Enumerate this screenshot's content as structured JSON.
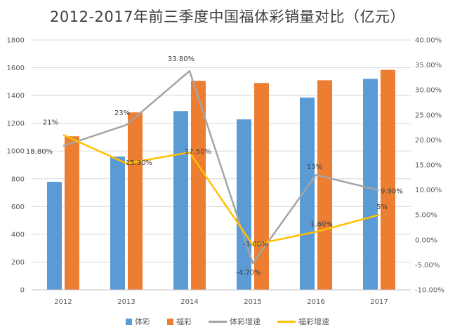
{
  "colors": {
    "tc": "#5B9BD5",
    "fc": "#ED7D31",
    "tc_growth": "#A5A5A5",
    "fc_growth": "#FFC000",
    "grid": "#D9D9D9"
  },
  "chart_data": {
    "type": "bar",
    "title": "2012-2017年前三季度中国福体彩销量对比（亿元）",
    "categories": [
      "2012",
      "2013",
      "2014",
      "2015",
      "2016",
      "2017"
    ],
    "y_left": {
      "min": 0,
      "max": 1800,
      "step": 200,
      "ticks": [
        "0",
        "200",
        "400",
        "600",
        "800",
        "1000",
        "1200",
        "1400",
        "1600",
        "1800"
      ]
    },
    "y_right": {
      "min": -10,
      "max": 40,
      "step": 5,
      "ticks": [
        "-10.00%",
        "-5.00%",
        "0.00%",
        "5.00%",
        "10.00%",
        "15.00%",
        "20.00%",
        "25.00%",
        "30.00%",
        "35.00%",
        "40.00%"
      ]
    },
    "grid": true,
    "legend_position": "bottom",
    "series": [
      {
        "name": "体彩",
        "type": "bar",
        "axis": "left",
        "color_key": "tc",
        "values": [
          778,
          960,
          1288,
          1228,
          1385,
          1520
        ]
      },
      {
        "name": "福彩",
        "type": "bar",
        "axis": "left",
        "color_key": "fc",
        "values": [
          1106,
          1278,
          1506,
          1490,
          1510,
          1585
        ]
      },
      {
        "name": "体彩增速",
        "type": "line",
        "axis": "right",
        "color_key": "tc_growth",
        "values": [
          18.8,
          23,
          33.8,
          -4.7,
          13,
          9.9
        ],
        "labels": [
          "18.80%",
          "23%",
          "33.80%",
          "-4.70%",
          "13%",
          "9.90%"
        ]
      },
      {
        "name": "福彩增速",
        "type": "line",
        "axis": "right",
        "color_key": "fc_growth",
        "values": [
          21,
          15.3,
          17.5,
          -1,
          1.6,
          5
        ],
        "labels": [
          "21%",
          "15.30%",
          "17.50%",
          "-1.00%",
          "1.60%",
          "5%"
        ]
      }
    ]
  }
}
